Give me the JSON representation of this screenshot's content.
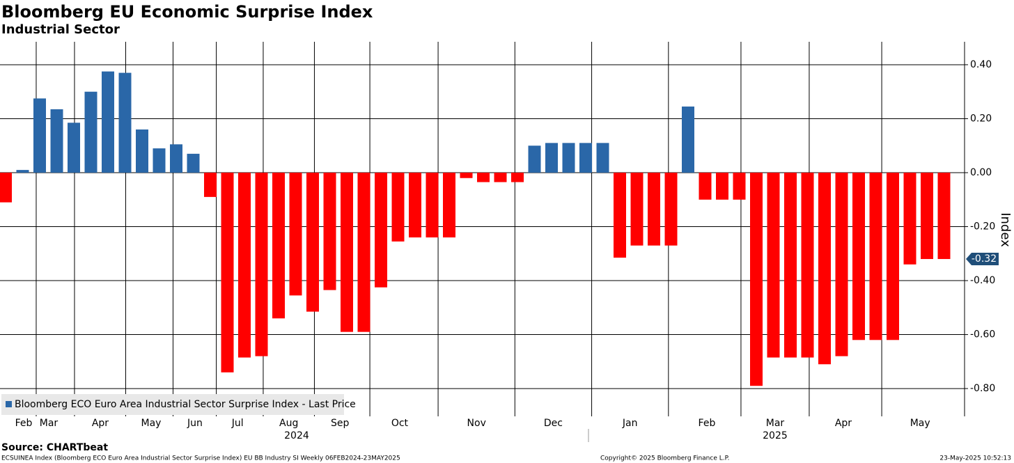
{
  "chart_data": {
    "type": "bar",
    "title": "Bloomberg EU Economic Surprise Index",
    "subtitle": "Industrial Sector",
    "y_label": "Index",
    "source": "Source: CHARTbeat",
    "footer_left": "ECSUINEA Index (Bloomberg ECO Euro Area Industrial Sector Surprise Index) EU BB Industry SI  Weekly 06FEB2024-23MAY2025",
    "footer_center": "Copyright© 2025 Bloomberg Finance L.P.",
    "footer_right": "23-May-2025 10:52:13",
    "series": [
      {
        "name": "Bloomberg ECO Euro Area Industrial Sector Surprise Index - Last Price",
        "color": "#2a67a8",
        "negative_color": "#ff0000",
        "values": [
          -0.11,
          0.01,
          0.275,
          0.235,
          0.185,
          0.3,
          0.375,
          0.37,
          0.16,
          0.09,
          0.105,
          0.07,
          -0.09,
          -0.74,
          -0.685,
          -0.68,
          -0.54,
          -0.455,
          -0.515,
          -0.435,
          -0.59,
          -0.59,
          -0.425,
          -0.255,
          -0.24,
          -0.24,
          -0.24,
          -0.02,
          -0.035,
          -0.035,
          -0.035,
          0.1,
          0.11,
          0.11,
          0.11,
          0.11,
          -0.315,
          -0.27,
          -0.27,
          -0.27,
          0.245,
          -0.1,
          -0.1,
          -0.1,
          -0.79,
          -0.685,
          -0.685,
          -0.685,
          -0.71,
          -0.68,
          -0.62,
          -0.62,
          -0.62,
          -0.34,
          -0.32,
          -0.32
        ]
      }
    ],
    "categories": [
      null,
      null,
      null,
      null,
      null,
      null,
      null,
      null,
      null,
      null,
      null,
      null,
      null,
      null,
      null,
      null,
      null,
      null,
      null,
      null,
      null,
      null,
      null,
      null,
      null,
      null,
      null,
      null,
      null,
      null,
      null,
      null,
      null,
      null,
      null,
      null,
      null,
      null,
      null,
      null,
      null,
      null,
      null,
      null,
      null,
      null,
      null,
      null,
      null,
      null,
      null,
      null,
      null,
      null,
      null,
      null
    ],
    "month_ticks": [
      {
        "value": 1.06,
        "label": "Feb"
      },
      {
        "value": 2.53,
        "label": "Mar"
      },
      {
        "value": 5.55,
        "label": "Apr"
      },
      {
        "value": 8.53,
        "label": "May"
      },
      {
        "value": 11.1,
        "label": "Jun"
      },
      {
        "value": 13.6,
        "label": "Jul"
      },
      {
        "value": 16.6,
        "label": "Aug"
      },
      {
        "value": 19.6,
        "label": "Sep"
      },
      {
        "value": 23.1,
        "label": "Oct"
      },
      {
        "value": 27.6,
        "label": "Nov"
      },
      {
        "value": 32.1,
        "label": "Dec"
      },
      {
        "value": 36.6,
        "label": "Jan"
      },
      {
        "value": 41.1,
        "label": "Feb"
      },
      {
        "value": 45.1,
        "label": "Mar"
      },
      {
        "value": 49.1,
        "label": "Apr"
      },
      {
        "value": 53.6,
        "label": "May"
      }
    ],
    "year_ticks": [
      {
        "value": 17.06,
        "label": "2024"
      },
      {
        "value": 45.1,
        "label": "2025"
      }
    ],
    "last_value": {
      "value": -0.32,
      "label": "-0.32"
    },
    "ylim": [
      -0.903,
      0.485
    ],
    "yticks": [
      {
        "value": 0.4,
        "label": "0.40"
      },
      {
        "value": 0.2,
        "label": "0.20"
      },
      {
        "value": 0,
        "label": "0.00"
      },
      {
        "value": -0.2,
        "label": "-0.20"
      },
      {
        "value": -0.4,
        "label": "-0.40"
      },
      {
        "value": -0.6,
        "label": "-0.60"
      },
      {
        "value": -0.8,
        "label": "-0.80"
      }
    ],
    "grid": true,
    "legend": "bottom-left"
  }
}
